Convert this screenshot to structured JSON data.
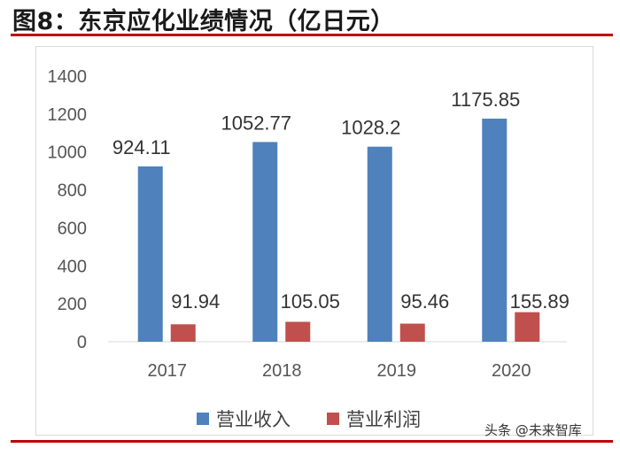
{
  "title": "图8：东京应化业绩情况（亿日元）",
  "watermark": "头条 @未来智库",
  "colors": {
    "accent": "#c00000",
    "revenue": "#4f81bd",
    "profit": "#c0504d"
  },
  "chart_data": {
    "type": "bar",
    "categories": [
      "2017",
      "2018",
      "2019",
      "2020"
    ],
    "series": [
      {
        "name": "营业收入",
        "values": [
          924.11,
          1052.77,
          1028.2,
          1175.85
        ],
        "labels": [
          "924.11",
          "1052.77",
          "1028.2",
          "1175.85"
        ]
      },
      {
        "name": "营业利润",
        "values": [
          91.94,
          105.05,
          95.46,
          155.89
        ],
        "labels": [
          "91.94",
          "105.05",
          "95.46",
          "155.89"
        ]
      }
    ],
    "ylim": [
      0,
      1400
    ],
    "yticks": [
      0,
      200,
      400,
      600,
      800,
      1000,
      1200,
      1400
    ],
    "grid": false,
    "legend": "bottom"
  }
}
